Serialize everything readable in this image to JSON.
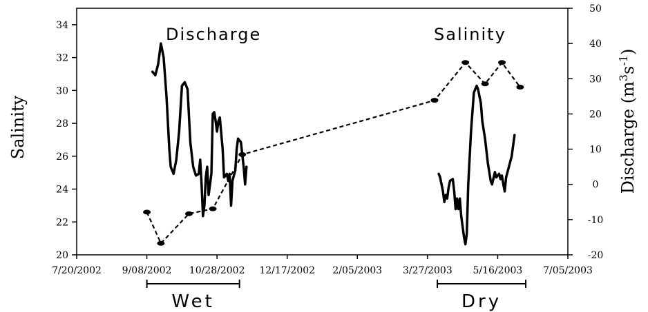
{
  "chart_data": {
    "type": "line",
    "x_axis": {
      "scale": "date",
      "range": [
        "2002-07-20",
        "2003-07-05"
      ],
      "tick_labels": [
        "7/20/2002",
        "9/08/2002",
        "10/28/2002",
        "12/17/2002",
        "2/05/2003",
        "3/27/2003",
        "5/16/2003",
        "7/05/2003"
      ]
    },
    "y_left": {
      "label": "Salinity",
      "range": [
        20,
        35
      ],
      "ticks": [
        "20",
        "22",
        "24",
        "26",
        "28",
        "30",
        "32",
        "34"
      ]
    },
    "y_right": {
      "label_parts": {
        "main": "Discharge (m",
        "sup1": "3",
        "mid": "s",
        "sup2": "-1",
        "end": ")"
      },
      "range": [
        -20,
        50
      ],
      "ticks": [
        "-20",
        "-10",
        "0",
        "10",
        "20",
        "30",
        "40",
        "50"
      ]
    },
    "annotations": {
      "discharge": "Discharge",
      "salinity": "Salinity"
    },
    "periods": [
      {
        "label": "Wet",
        "start": "2002-09-08",
        "end": "2002-11-13"
      },
      {
        "label": "Dry",
        "start": "2003-04-03",
        "end": "2003-06-05"
      }
    ],
    "series": [
      {
        "axis": "left",
        "style": "dashed-markers",
        "points": [
          [
            "2002-09-08",
            22.6
          ],
          [
            "2002-09-18",
            20.7
          ],
          [
            "2002-10-08",
            22.5
          ],
          [
            "2002-10-25",
            22.8
          ],
          [
            "2002-11-15",
            26.1
          ],
          [
            "2003-04-01",
            29.4
          ],
          [
            "2003-04-23",
            31.7
          ],
          [
            "2003-05-07",
            30.4
          ],
          [
            "2003-05-19",
            31.7
          ],
          [
            "2003-06-01",
            30.2
          ]
        ]
      },
      {
        "axis": "right",
        "style": "solid",
        "points": [
          [
            "2002-09-12",
            32
          ],
          [
            "2002-09-14",
            31
          ],
          [
            "2002-09-16",
            34
          ],
          [
            "2002-09-18",
            40
          ],
          [
            "2002-09-20",
            36
          ],
          [
            "2002-09-22",
            25
          ],
          [
            "2002-09-24",
            10
          ],
          [
            "2002-09-25",
            5
          ],
          [
            "2002-09-27",
            3
          ],
          [
            "2002-09-29",
            7
          ],
          [
            "2002-10-01",
            15
          ],
          [
            "2002-10-03",
            28
          ],
          [
            "2002-10-05",
            29
          ],
          [
            "2002-10-07",
            27
          ],
          [
            "2002-10-09",
            12
          ],
          [
            "2002-10-11",
            5
          ],
          [
            "2002-10-13",
            2.5
          ],
          [
            "2002-10-15",
            3
          ],
          [
            "2002-10-16",
            7
          ],
          [
            "2002-10-17",
            0
          ],
          [
            "2002-10-18",
            -9
          ],
          [
            "2002-10-19",
            -6
          ],
          [
            "2002-10-20",
            2
          ],
          [
            "2002-10-21",
            5
          ],
          [
            "2002-10-22",
            -3
          ],
          [
            "2002-10-24",
            3
          ],
          [
            "2002-10-25",
            20
          ],
          [
            "2002-10-26",
            20.5
          ],
          [
            "2002-10-27",
            18
          ],
          [
            "2002-10-28",
            15
          ],
          [
            "2002-10-29",
            18
          ],
          [
            "2002-10-30",
            19
          ],
          [
            "2002-11-01",
            10
          ],
          [
            "2002-11-02",
            2
          ],
          [
            "2002-11-04",
            3
          ],
          [
            "2002-11-05",
            1
          ],
          [
            "2002-11-06",
            3
          ],
          [
            "2002-11-07",
            -6
          ],
          [
            "2002-11-08",
            1
          ],
          [
            "2002-11-09",
            2.5
          ],
          [
            "2002-11-10",
            4
          ],
          [
            "2002-11-11",
            10
          ],
          [
            "2002-11-12",
            13
          ],
          [
            "2002-11-14",
            12
          ],
          [
            "2002-11-16",
            5
          ],
          [
            "2002-11-17",
            0
          ],
          [
            "2002-11-18",
            5
          ]
        ]
      },
      {
        "axis": "right",
        "style": "solid",
        "points": [
          [
            "2003-04-04",
            3
          ],
          [
            "2003-04-05",
            2
          ],
          [
            "2003-04-07",
            -2
          ],
          [
            "2003-04-08",
            -5
          ],
          [
            "2003-04-09",
            -3
          ],
          [
            "2003-04-10",
            -4
          ],
          [
            "2003-04-11",
            -1
          ],
          [
            "2003-04-12",
            1
          ],
          [
            "2003-04-14",
            1.5
          ],
          [
            "2003-04-15",
            -2
          ],
          [
            "2003-04-16",
            -7
          ],
          [
            "2003-04-17",
            -4
          ],
          [
            "2003-04-18",
            -7
          ],
          [
            "2003-04-19",
            -4
          ],
          [
            "2003-04-20",
            -9
          ],
          [
            "2003-04-22",
            -15
          ],
          [
            "2003-04-23",
            -17
          ],
          [
            "2003-04-24",
            -14
          ],
          [
            "2003-04-25",
            0
          ],
          [
            "2003-04-27",
            15
          ],
          [
            "2003-04-29",
            26
          ],
          [
            "2003-05-01",
            28
          ],
          [
            "2003-05-02",
            27
          ],
          [
            "2003-05-04",
            23
          ],
          [
            "2003-05-05",
            18
          ],
          [
            "2003-05-07",
            13
          ],
          [
            "2003-05-09",
            6
          ],
          [
            "2003-05-11",
            1
          ],
          [
            "2003-05-12",
            0
          ],
          [
            "2003-05-14",
            3.5
          ],
          [
            "2003-05-15",
            2
          ],
          [
            "2003-05-17",
            3
          ],
          [
            "2003-05-18",
            1.5
          ],
          [
            "2003-05-19",
            2.5
          ],
          [
            "2003-05-20",
            0
          ],
          [
            "2003-05-21",
            -2
          ],
          [
            "2003-05-22",
            2
          ],
          [
            "2003-05-24",
            5
          ],
          [
            "2003-05-26",
            8
          ],
          [
            "2003-05-28",
            14
          ]
        ]
      }
    ]
  }
}
